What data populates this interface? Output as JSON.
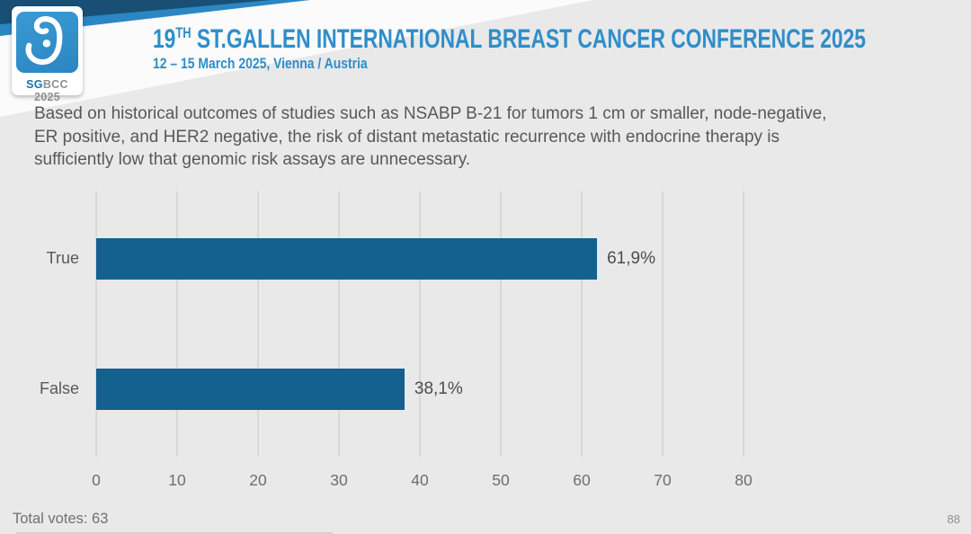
{
  "header": {
    "logo": {
      "icon": "sgbcc-ribbon-glyph",
      "text_bold": "SG",
      "text_rest": "BCC 2025"
    },
    "title_prefix": "19",
    "title_sup": "TH",
    "title_rest": " ST.GALLEN INTERNATIONAL BREAST CANCER CONFERENCE 2025",
    "subtitle": "12 – 15 March 2025, Vienna / Austria"
  },
  "question": "Based on historical outcomes of studies such as NSABP B-21 for tumors 1 cm or smaller, node-negative, ER positive, and HER2 negative, the risk of distant metastatic recurrence with endocrine therapy is sufficiently low that genomic risk assays are unnecessary.",
  "chart_data": {
    "type": "bar",
    "orientation": "horizontal",
    "categories": [
      "True",
      "False"
    ],
    "values": [
      61.9,
      38.1
    ],
    "value_labels": [
      "61,9%",
      "38,1%"
    ],
    "xlim": [
      0,
      80
    ],
    "xticks": [
      0,
      10,
      20,
      30,
      40,
      50,
      60,
      70,
      80
    ],
    "title": "",
    "xlabel": "",
    "ylabel": "",
    "grid": true,
    "bar_color": "#14608f",
    "grid_color": "#d8d8d8",
    "legend": "none"
  },
  "footer": {
    "total_votes": "Total votes: 63",
    "slide_number": "88"
  },
  "colors": {
    "background": "#e9e9e9",
    "ribbon_navy": "#194f74",
    "ribbon_blue": "#2b87c4",
    "accent_blue": "#2f8ec9",
    "bar_blue": "#14608f"
  }
}
